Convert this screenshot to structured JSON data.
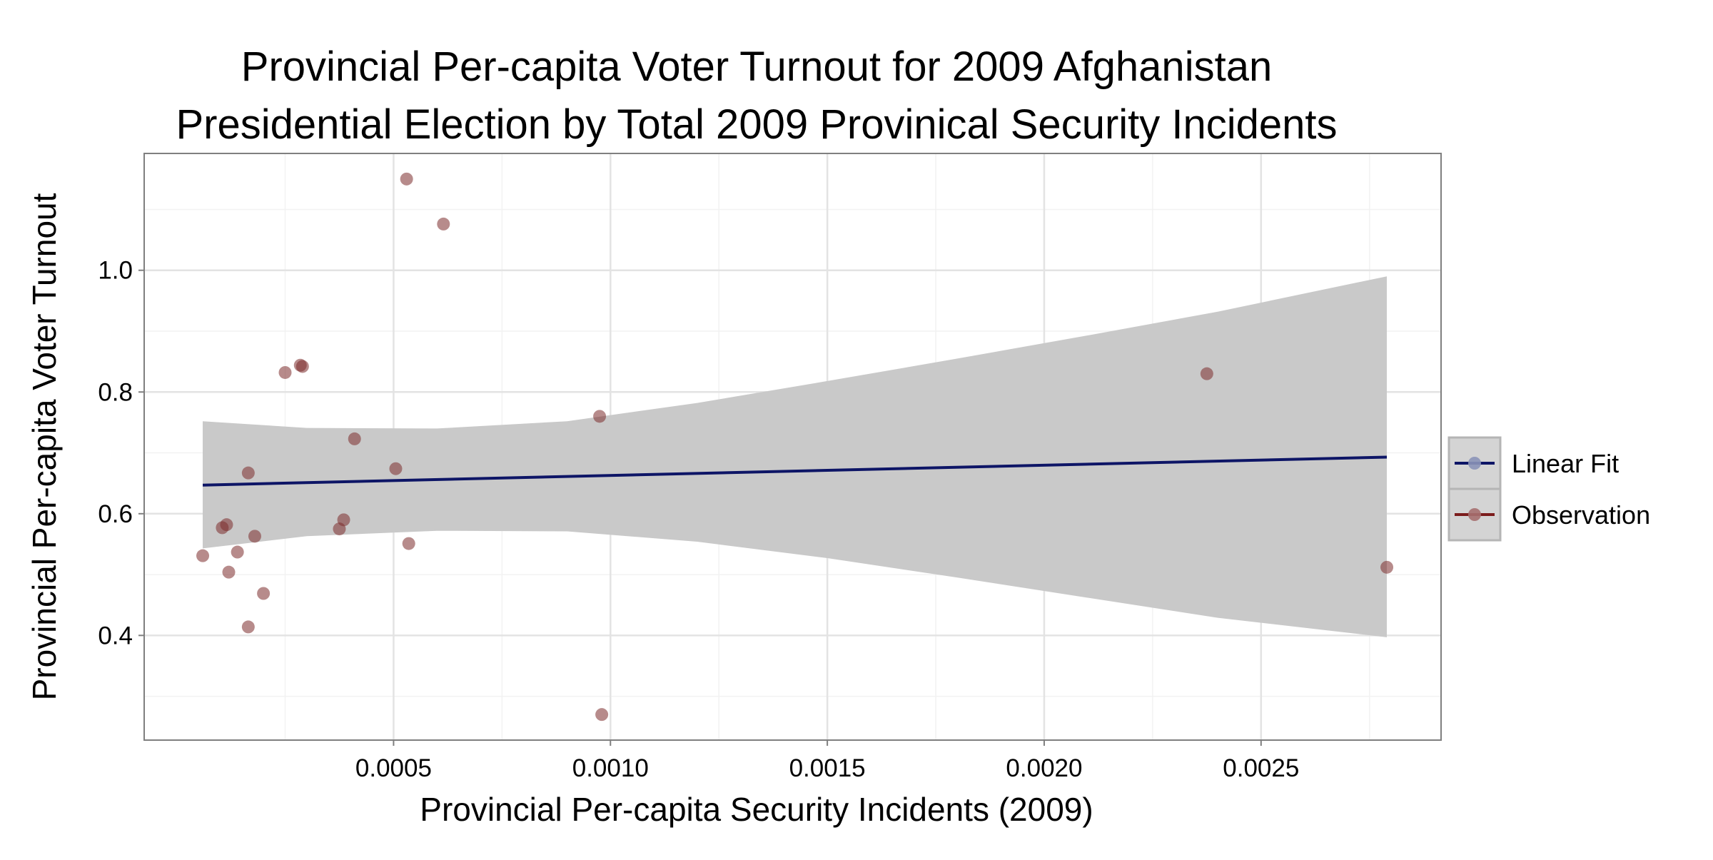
{
  "chart_data": {
    "type": "scatter",
    "title": [
      "Provincial Per-capita Voter Turnout for 2009 Afghanistan",
      "Presidential Election by Total 2009 Provinical Security Incidents"
    ],
    "xlabel": "Provincial Per-capita Security Incidents (2009)",
    "ylabel": "Provincial Per-capita Voter Turnout",
    "xlim": [
      -7.5e-05,
      0.002915
    ],
    "ylim": [
      0.228,
      1.192
    ],
    "x_ticks": [
      0.0005,
      0.001,
      0.0015,
      0.002,
      0.0025
    ],
    "x_tick_labels": [
      "0.0005",
      "0.0010",
      "0.0015",
      "0.0020",
      "0.0025"
    ],
    "y_ticks": [
      0.4,
      0.6,
      0.8,
      1.0
    ],
    "y_tick_labels": [
      "0.4",
      "0.6",
      "0.8",
      "1.0"
    ],
    "grid": true,
    "legend_position": "right",
    "series": [
      {
        "name": "Observation",
        "kind": "points",
        "color": "#7b2b2b",
        "points": [
          {
            "x": 6e-05,
            "y": 0.531
          },
          {
            "x": 0.000105,
            "y": 0.577
          },
          {
            "x": 0.000115,
            "y": 0.582
          },
          {
            "x": 0.00012,
            "y": 0.504
          },
          {
            "x": 0.00014,
            "y": 0.537
          },
          {
            "x": 0.000165,
            "y": 0.414
          },
          {
            "x": 0.000165,
            "y": 0.667
          },
          {
            "x": 0.00018,
            "y": 0.563
          },
          {
            "x": 0.0002,
            "y": 0.469
          },
          {
            "x": 0.00025,
            "y": 0.832
          },
          {
            "x": 0.000285,
            "y": 0.844
          },
          {
            "x": 0.00029,
            "y": 0.842
          },
          {
            "x": 0.000375,
            "y": 0.575
          },
          {
            "x": 0.000385,
            "y": 0.59
          },
          {
            "x": 0.00041,
            "y": 0.723
          },
          {
            "x": 0.000505,
            "y": 0.674
          },
          {
            "x": 0.00053,
            "y": 1.15
          },
          {
            "x": 0.000535,
            "y": 0.551
          },
          {
            "x": 0.000615,
            "y": 1.076
          },
          {
            "x": 0.000975,
            "y": 0.76
          },
          {
            "x": 0.00098,
            "y": 0.27
          },
          {
            "x": 0.002375,
            "y": 0.83
          },
          {
            "x": 0.00279,
            "y": 0.512
          }
        ]
      },
      {
        "name": "Linear Fit",
        "kind": "line",
        "color": "#0d1566",
        "x": [
          6e-05,
          0.00279
        ],
        "y": [
          0.647,
          0.693
        ],
        "confidence_band": {
          "color": "#c9c9c9",
          "x": [
            6e-05,
            0.0003,
            0.0006,
            0.0009,
            0.0012,
            0.0015,
            0.0018,
            0.0021,
            0.0024,
            0.00279
          ],
          "lower": [
            0.543,
            0.563,
            0.572,
            0.571,
            0.554,
            0.527,
            0.495,
            0.462,
            0.429,
            0.397
          ],
          "upper": [
            0.752,
            0.741,
            0.74,
            0.752,
            0.782,
            0.818,
            0.855,
            0.893,
            0.932,
            0.99
          ]
        }
      }
    ],
    "legend": [
      {
        "label": "Linear Fit",
        "line_color": "#0d1566",
        "point_color": "#8b93b8"
      },
      {
        "label": "Observation",
        "line_color": "#7b1c1c",
        "point_color": "#a67070"
      }
    ]
  }
}
